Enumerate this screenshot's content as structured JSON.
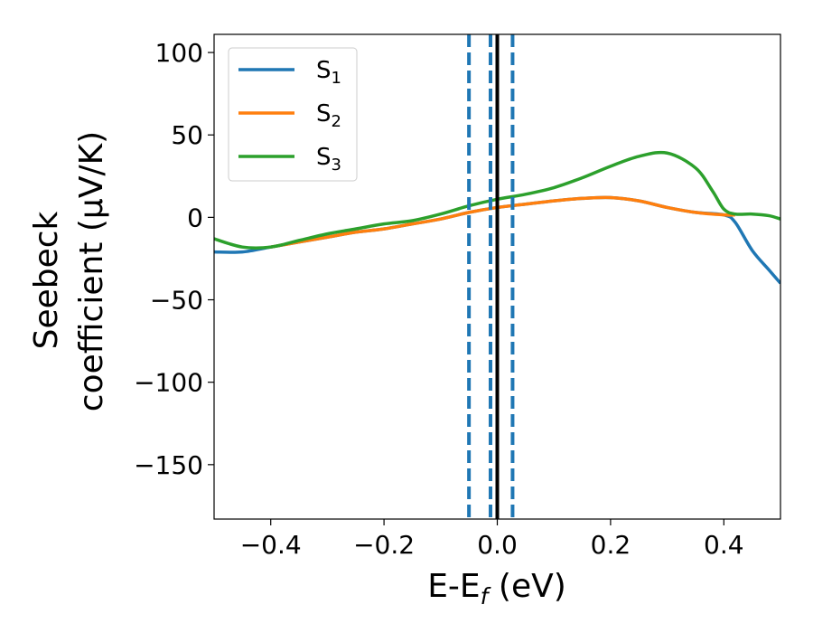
{
  "chart_data": {
    "type": "line",
    "xlabel": "E-E",
    "xlabel_sub": "f",
    "xlabel_unit": " (eV)",
    "ylabel_line1": "Seebeck",
    "ylabel_line2": "coefficient  (μV/K)",
    "xlim": [
      -0.5,
      0.5
    ],
    "ylim": [
      -183,
      111
    ],
    "xticks": [
      -0.4,
      -0.2,
      0.0,
      0.2,
      0.4
    ],
    "xtick_labels": [
      "−0.4",
      "−0.2",
      "0.0",
      "0.2",
      "0.4"
    ],
    "yticks": [
      100,
      50,
      0,
      -50,
      -100,
      -150
    ],
    "ytick_labels": [
      "100",
      "50",
      "0",
      "−50",
      "−100",
      "−150"
    ],
    "grid": false,
    "legend_position": "top-left",
    "series": [
      {
        "name": "S",
        "sub": "1",
        "color": "#1f77b4",
        "x": [
          -0.5,
          -0.45,
          -0.4,
          -0.35,
          -0.3,
          -0.25,
          -0.2,
          -0.15,
          -0.1,
          -0.05,
          0.0,
          0.05,
          0.1,
          0.15,
          0.2,
          0.25,
          0.3,
          0.35,
          0.4,
          0.42,
          0.45,
          0.48,
          0.5
        ],
        "y": [
          -21,
          -21,
          -18,
          -15,
          -12,
          -9,
          -7,
          -4,
          -1,
          3,
          6,
          8,
          10,
          11.5,
          12,
          10,
          6,
          3,
          1.5,
          -3,
          -20,
          -32,
          -40
        ]
      },
      {
        "name": "S",
        "sub": "2",
        "color": "#ff7f0e",
        "x": [
          -0.4,
          -0.35,
          -0.3,
          -0.25,
          -0.2,
          -0.15,
          -0.1,
          -0.05,
          0.0,
          0.05,
          0.1,
          0.15,
          0.2,
          0.25,
          0.3,
          0.35,
          0.4,
          0.42
        ],
        "y": [
          -18,
          -15,
          -12,
          -9,
          -7,
          -4,
          -1,
          3,
          6,
          8,
          10,
          11.5,
          12,
          10,
          6,
          3,
          1.5,
          1.5
        ]
      },
      {
        "name": "S",
        "sub": "3",
        "color": "#2ca02c",
        "x": [
          -0.5,
          -0.45,
          -0.4,
          -0.35,
          -0.3,
          -0.25,
          -0.2,
          -0.15,
          -0.1,
          -0.05,
          0.0,
          0.05,
          0.1,
          0.15,
          0.2,
          0.25,
          0.3,
          0.35,
          0.38,
          0.4,
          0.42,
          0.45,
          0.48,
          0.5
        ],
        "y": [
          -13,
          -18,
          -18,
          -14,
          -10,
          -7,
          -4,
          -2,
          2,
          7,
          11,
          14,
          18,
          24,
          31,
          37,
          39,
          30,
          16,
          5,
          2,
          2,
          1,
          -1
        ]
      }
    ],
    "vlines": [
      {
        "x": -0.05,
        "style": "dashed",
        "color": "#1f77b4"
      },
      {
        "x": -0.012,
        "style": "dashed",
        "color": "#1f77b4"
      },
      {
        "x": 0.027,
        "style": "dashed",
        "color": "#1f77b4"
      },
      {
        "x": 0.0,
        "style": "solid",
        "color": "#000000"
      }
    ]
  }
}
